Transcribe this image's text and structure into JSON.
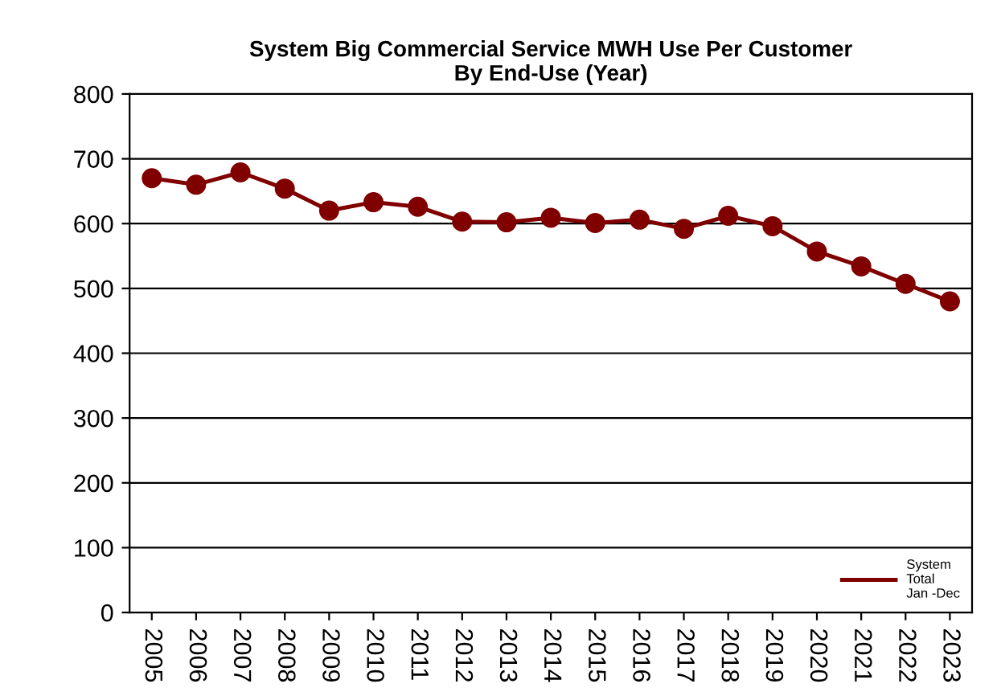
{
  "chart_data": {
    "type": "line",
    "title": "System Big Commercial Service MWH Use Per Customer\nBy End-Use (Year)",
    "categories": [
      "2005",
      "2006",
      "2007",
      "2008",
      "2009",
      "2010",
      "2011",
      "2012",
      "2013",
      "2014",
      "2015",
      "2016",
      "2017",
      "2018",
      "2019",
      "2020",
      "2021",
      "2022",
      "2023"
    ],
    "series": [
      {
        "name": "System\nTotal\nJan -Dec",
        "color": "#800000",
        "values": [
          670,
          660,
          679,
          654,
          620,
          633,
          626,
          603,
          602,
          609,
          601,
          606,
          592,
          612,
          596,
          557,
          534,
          507,
          480
        ]
      }
    ],
    "ylim": [
      0,
      800
    ],
    "yticks": [
      0,
      100,
      200,
      300,
      400,
      500,
      600,
      700,
      800
    ],
    "grid": "y",
    "legend": "bottom right",
    "marker": "circle",
    "line_style": "solid"
  }
}
